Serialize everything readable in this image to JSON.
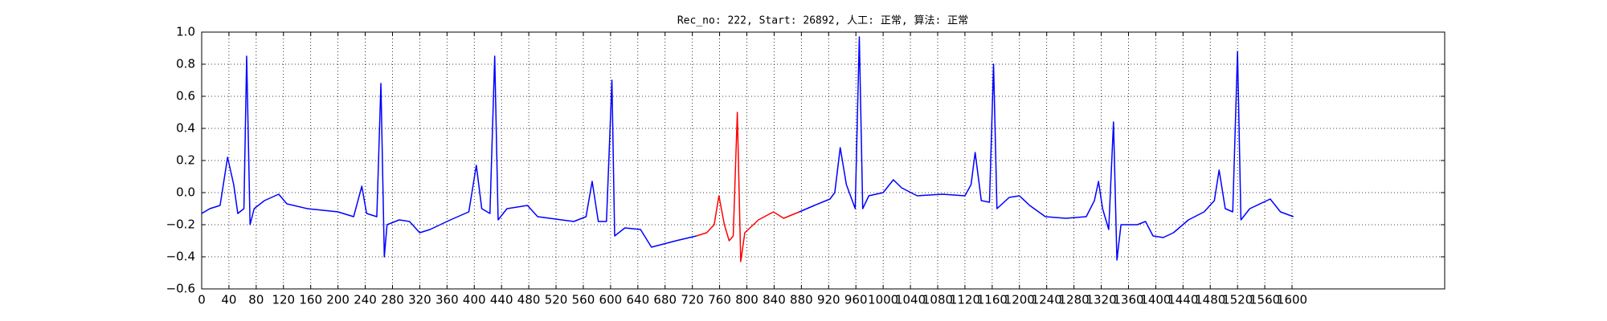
{
  "chart_data": {
    "type": "line",
    "title": "Rec_no: 222, Start: 26892, 人工: 正常, 算法: 正常",
    "x": [
      0,
      12,
      27,
      38,
      47,
      53,
      62,
      66,
      71,
      77,
      92,
      113,
      125,
      155,
      200,
      223,
      235,
      242,
      257,
      263,
      268,
      272,
      290,
      305,
      320,
      335,
      365,
      392,
      403,
      411,
      423,
      430,
      435,
      448,
      478,
      493,
      546,
      564,
      573,
      582,
      594,
      602,
      606,
      621,
      644,
      660,
      696,
      726,
      741,
      752,
      759,
      767,
      774,
      780,
      786,
      791,
      797,
      817,
      839,
      854,
      877,
      899,
      922,
      929,
      937,
      946,
      959,
      965,
      970,
      979,
      1000,
      1015,
      1027,
      1050,
      1087,
      1120,
      1129,
      1135,
      1144,
      1156,
      1162,
      1167,
      1185,
      1200,
      1215,
      1238,
      1268,
      1298,
      1310,
      1316,
      1322,
      1331,
      1338,
      1343,
      1349,
      1373,
      1385,
      1396,
      1411,
      1426,
      1448,
      1471,
      1486,
      1493,
      1502,
      1513,
      1520,
      1525,
      1538,
      1568,
      1583,
      1602
    ],
    "series": [
      {
        "color": "#0000ff",
        "values": [
          -0.13,
          -0.1,
          -0.08,
          0.22,
          0.05,
          -0.13,
          -0.1,
          0.85,
          -0.2,
          -0.1,
          -0.05,
          -0.01,
          -0.07,
          -0.1,
          -0.12,
          -0.15,
          0.04,
          -0.13,
          -0.15,
          0.68,
          -0.4,
          -0.2,
          -0.17,
          -0.18,
          -0.25,
          -0.23,
          -0.17,
          -0.12,
          0.17,
          -0.1,
          -0.13,
          0.85,
          -0.17,
          -0.1,
          -0.08,
          -0.15,
          -0.18,
          -0.15,
          0.07,
          -0.18,
          -0.18,
          0.7,
          -0.27,
          -0.22,
          -0.23,
          -0.34,
          -0.3,
          -0.27,
          null,
          null,
          null,
          null,
          null,
          null,
          null,
          null,
          null,
          null,
          null,
          null,
          -0.12,
          -0.08,
          -0.04,
          0.0,
          0.28,
          0.05,
          -0.1,
          0.97,
          -0.1,
          -0.02,
          0.0,
          0.08,
          0.03,
          -0.02,
          -0.01,
          -0.02,
          0.05,
          0.25,
          -0.05,
          -0.06,
          0.8,
          -0.1,
          -0.03,
          -0.02,
          -0.08,
          -0.15,
          -0.16,
          -0.15,
          -0.05,
          0.07,
          -0.1,
          -0.23,
          0.44,
          -0.42,
          -0.2,
          -0.2,
          -0.18,
          -0.27,
          -0.28,
          -0.25,
          -0.17,
          -0.12,
          -0.05,
          0.14,
          -0.1,
          -0.12,
          0.88,
          -0.17,
          -0.1,
          -0.04,
          -0.12,
          -0.15
        ]
      },
      {
        "color": "#ff0000",
        "values": [
          null,
          null,
          null,
          null,
          null,
          null,
          null,
          null,
          null,
          null,
          null,
          null,
          null,
          null,
          null,
          null,
          null,
          null,
          null,
          null,
          null,
          null,
          null,
          null,
          null,
          null,
          null,
          null,
          null,
          null,
          null,
          null,
          null,
          null,
          null,
          null,
          null,
          null,
          null,
          null,
          null,
          null,
          null,
          null,
          null,
          null,
          null,
          -0.27,
          -0.25,
          -0.2,
          -0.02,
          -0.2,
          -0.3,
          -0.27,
          0.5,
          -0.43,
          -0.25,
          -0.17,
          -0.12,
          -0.16,
          -0.12,
          null,
          null,
          null,
          null,
          null,
          null,
          null,
          null,
          null,
          null,
          null,
          null,
          null,
          null,
          null,
          null,
          null,
          null,
          null,
          null,
          null,
          null,
          null,
          null,
          null,
          null,
          null,
          null,
          null,
          null,
          null,
          null,
          null,
          null,
          null,
          null,
          null,
          null,
          null,
          null,
          null,
          null,
          null,
          null,
          null,
          null,
          null,
          null,
          null,
          null,
          null
        ]
      }
    ],
    "xlim": [
      0,
      1824
    ],
    "xticks": [
      0,
      40,
      80,
      120,
      160,
      200,
      240,
      280,
      320,
      360,
      400,
      440,
      480,
      520,
      560,
      600,
      640,
      680,
      720,
      760,
      800,
      840,
      880,
      920,
      960,
      1000,
      1040,
      1080,
      1120,
      1160,
      1200,
      1240,
      1280,
      1320,
      1360,
      1400,
      1440,
      1480,
      1520,
      1560,
      1600
    ],
    "ylim": [
      -0.6,
      1.0
    ],
    "yticks": [
      {
        "value": -0.6,
        "label": "−0.6"
      },
      {
        "value": -0.4,
        "label": "−0.4"
      },
      {
        "value": -0.2,
        "label": "−0.2"
      },
      {
        "value": 0,
        "label": "0.0"
      },
      0.2,
      0.4,
      0.6,
      0.8,
      {
        "value": 1,
        "label": "1.0"
      }
    ],
    "grid": true
  }
}
